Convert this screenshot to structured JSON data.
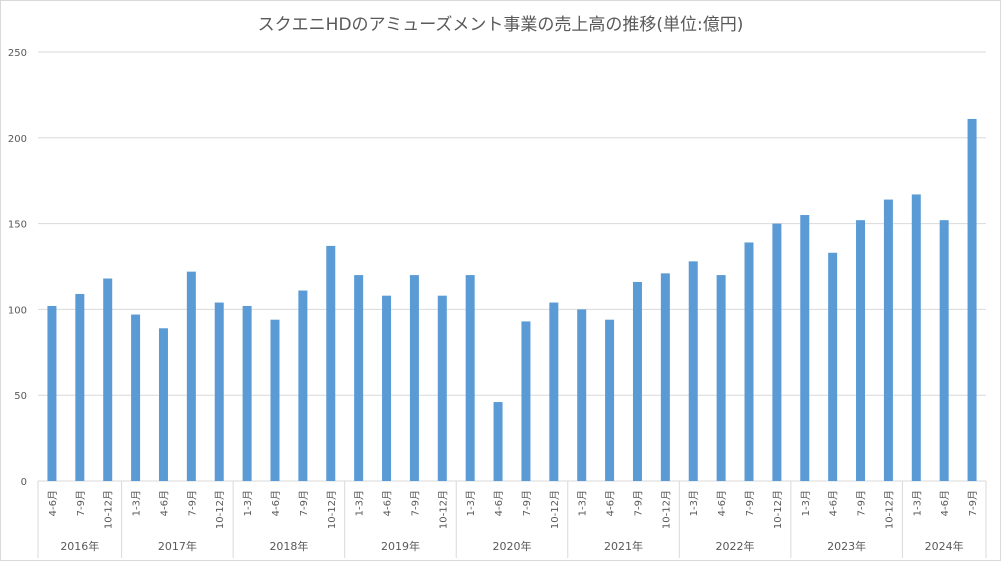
{
  "chart_data": {
    "type": "bar",
    "title": "スクエニHDのアミューズメント事業の売上高の推移(単位:億円)",
    "xlabel": "",
    "ylabel": "",
    "ylim": [
      0,
      250
    ],
    "yticks": [
      "0",
      "50",
      "100",
      "150",
      "200",
      "250"
    ],
    "grid": true,
    "color": "#5b9bd5",
    "groups": [
      {
        "year": "2016年",
        "categories": [
          "4-6月",
          "7-9月",
          "10-12月"
        ],
        "values": [
          102,
          109,
          118
        ]
      },
      {
        "year": "2017年",
        "categories": [
          "1-3月",
          "4-6月",
          "7-9月",
          "10-12月"
        ],
        "values": [
          97,
          89,
          122,
          104
        ]
      },
      {
        "year": "2018年",
        "categories": [
          "1-3月",
          "4-6月",
          "7-9月",
          "10-12月"
        ],
        "values": [
          102,
          94,
          111,
          137
        ]
      },
      {
        "year": "2019年",
        "categories": [
          "1-3月",
          "4-6月",
          "7-9月",
          "10-12月"
        ],
        "values": [
          120,
          108,
          120,
          108
        ]
      },
      {
        "year": "2020年",
        "categories": [
          "1-3月",
          "4-6月",
          "7-9月",
          "10-12月"
        ],
        "values": [
          120,
          46,
          93,
          104
        ]
      },
      {
        "year": "2021年",
        "categories": [
          "1-3月",
          "4-6月",
          "7-9月",
          "10-12月"
        ],
        "values": [
          100,
          94,
          116,
          121
        ]
      },
      {
        "year": "2022年",
        "categories": [
          "1-3月",
          "4-6月",
          "7-9月",
          "10-12月"
        ],
        "values": [
          128,
          120,
          139,
          150
        ]
      },
      {
        "year": "2023年",
        "categories": [
          "1-3月",
          "4-6月",
          "7-9月",
          "10-12月"
        ],
        "values": [
          155,
          133,
          152,
          164
        ]
      },
      {
        "year": "2024年",
        "categories": [
          "1-3月",
          "4-6月",
          "7-9月"
        ],
        "values": [
          167,
          152,
          211
        ]
      }
    ]
  }
}
